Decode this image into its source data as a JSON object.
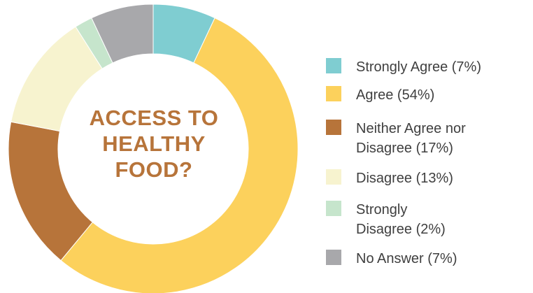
{
  "chart_data": {
    "type": "pie",
    "title": "ACCESS TO HEALTHY FOOD?",
    "title_lines": [
      "ACCESS TO",
      "HEALTHY",
      "FOOD?"
    ],
    "categories": [
      "Strongly Agree",
      "Agree",
      "Neither Agree nor Disagree",
      "Disagree",
      "Strongly Disagree",
      "No Answer"
    ],
    "values": [
      7,
      54,
      17,
      13,
      2,
      7
    ],
    "legend_labels": [
      "Strongly Agree (7%)",
      "Agree (54%)",
      "Neither Agree nor\nDisagree (17%)",
      "Disagree (13%)",
      "Strongly\nDisagree (2%)",
      "No Answer (7%)"
    ],
    "colors": [
      "#7fcdd1",
      "#fcd15c",
      "#b7743a",
      "#f7f3cf",
      "#c6e5cc",
      "#a8a8ab"
    ],
    "legend_position": "right",
    "donut": true
  }
}
